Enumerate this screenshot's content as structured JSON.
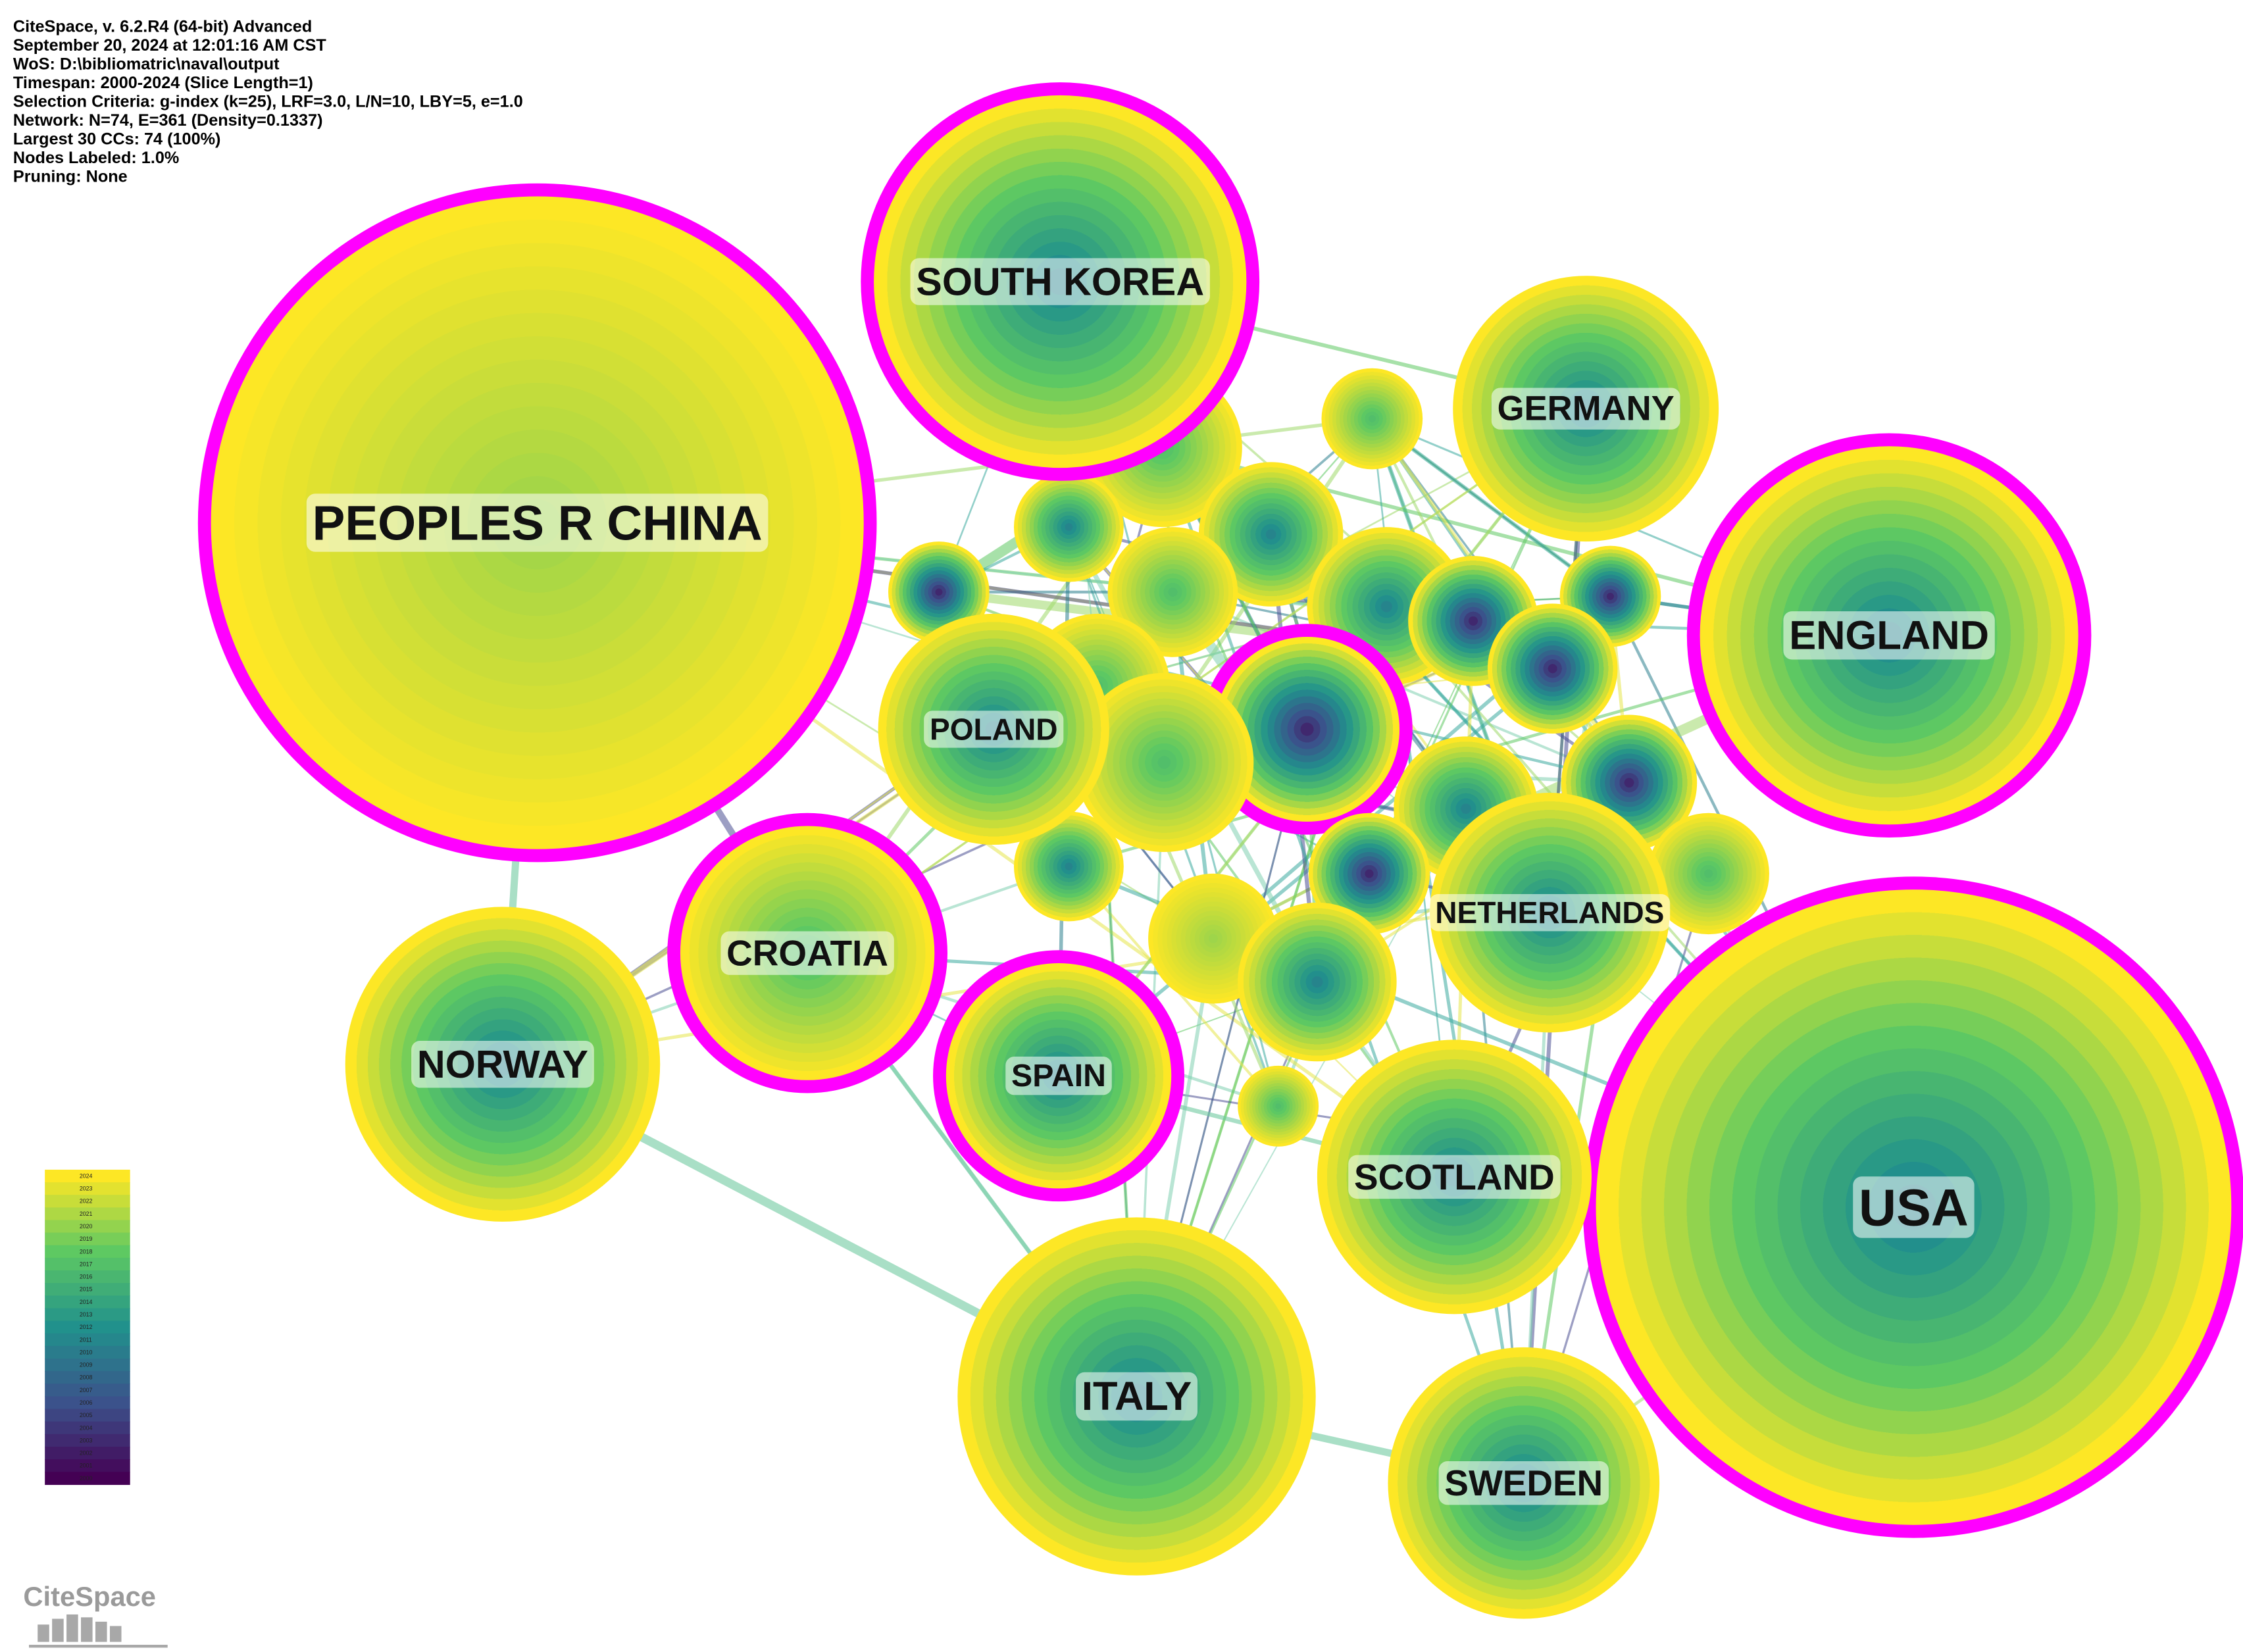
{
  "header": {
    "lines": [
      "CiteSpace, v. 6.2.R4 (64-bit) Advanced",
      "September 20, 2024 at 12:01:16 AM CST",
      "WoS: D:\\bibliomatric\\naval\\output",
      "Timespan: 2000-2024 (Slice Length=1)",
      "Selection Criteria: g-index (k=25), LRF=3.0, L/N=10, LBY=5, e=1.0",
      "Network: N=74, E=361 (Density=0.1337)",
      "Largest 30 CCs: 74 (100%)",
      "Nodes Labeled: 1.0%",
      "Pruning: None"
    ]
  },
  "nodes": [
    {
      "label": "PEOPLES R CHINA"
    },
    {
      "label": "SOUTH KOREA"
    },
    {
      "label": "GERMANY"
    },
    {
      "label": "ENGLAND"
    },
    {
      "label": "USA"
    },
    {
      "label": "NETHERLANDS"
    },
    {
      "label": "SCOTLAND"
    },
    {
      "label": "SWEDEN"
    },
    {
      "label": "ITALY"
    },
    {
      "label": "SPAIN"
    },
    {
      "label": "CROATIA"
    },
    {
      "label": "NORWAY"
    },
    {
      "label": "POLAND"
    }
  ],
  "legend": {
    "years": [
      "2024",
      "2023",
      "2022",
      "2021",
      "2020",
      "2019",
      "2018",
      "2017",
      "2016",
      "2015",
      "2014",
      "2013",
      "2012",
      "2011",
      "2010",
      "2009",
      "2008",
      "2007",
      "2006",
      "2005",
      "2004",
      "2003",
      "2002",
      "2001",
      "2000"
    ]
  },
  "logo": {
    "text": "CiteSpace"
  }
}
